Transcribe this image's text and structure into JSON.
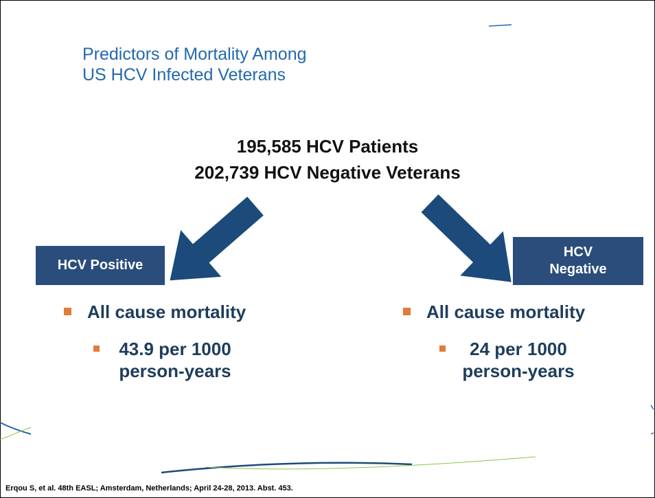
{
  "slide": {
    "title_lines": [
      "Predictors of Mortality Among",
      "US HCV Infected Veterans"
    ],
    "summary_lines": [
      "195,585 HCV Patients",
      "202,739 HCV Negative Veterans"
    ],
    "groups": [
      {
        "label": "HCV Positive",
        "bullet": "All cause mortality",
        "sub_bullet": "43.9 per 1000 person-years"
      },
      {
        "label": "HCV Negative",
        "bullet": "All cause mortality",
        "sub_bullet": "24 per 1000 person-years"
      }
    ],
    "footer": "Erqou S, et al. 48th EASL; Amsterdam, Netherlands; April 24-28, 2013. Abst. 453."
  }
}
